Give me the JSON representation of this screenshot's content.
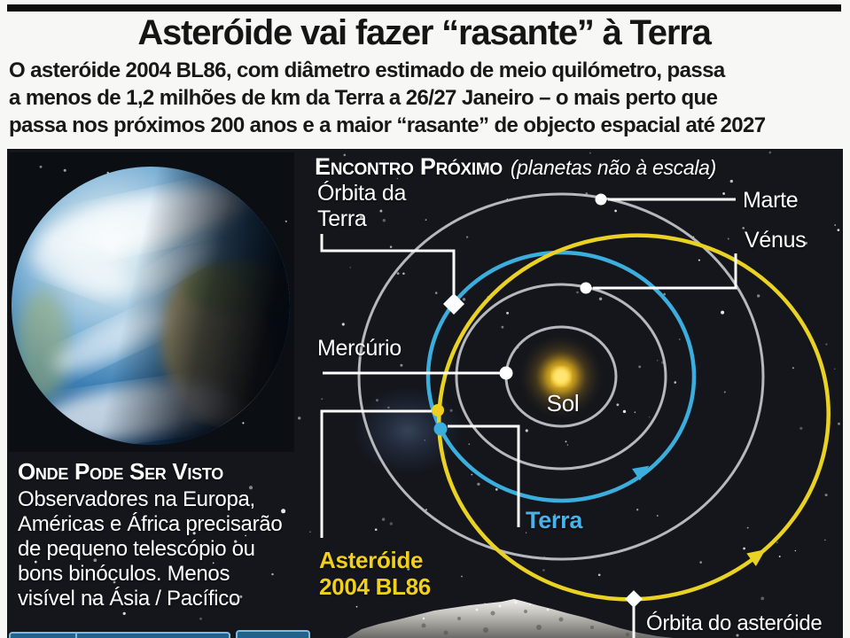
{
  "header": {
    "title": "Asteróide vai fazer “rasante” à Terra",
    "subtitle_lines": [
      "O asteróide 2004 BL86, com diâmetro estimado de meio quilómetro, passa",
      "a menos de 1,2 milhões de km da Terra a 26/27 Janeiro – o mais perto que",
      "passa nos próximos 200 anos e a maior “rasante” de objecto espacial até 2027"
    ]
  },
  "diagram": {
    "heading": "Encontro Próximo",
    "heading_note": "(planetas não à escala)",
    "labels": {
      "earth_orbit_line1": "Órbita da",
      "earth_orbit_line2": "Terra",
      "mars": "Marte",
      "venus": "Vénus",
      "mercury": "Mercúrio",
      "sun": "Sol",
      "earth": "Terra",
      "asteroid_line1": "Asteróide",
      "asteroid_line2": "2004 BL86",
      "asteroid_orbit": "Órbita do asteróide"
    }
  },
  "where_visible": {
    "heading": "Onde Pode Ser Visto",
    "lines": [
      "Observadores na Europa,",
      "Américas e África precisarão",
      "de pequeno telescópio ou",
      "bons binóculos. Menos",
      "visível na Ásia / Pacífico"
    ]
  },
  "colors": {
    "asteroid_orbit_yellow": "#e9d223",
    "earth_orbit_cyan": "#3caede",
    "planet_orbit_gray": "#b6b8bc",
    "terra_label_cyan": "#4ab2e8",
    "asteroid_label_yellow": "#f0d01c",
    "sun_core_yellow": "#f5c81e",
    "callout_white": "#ffffff"
  }
}
